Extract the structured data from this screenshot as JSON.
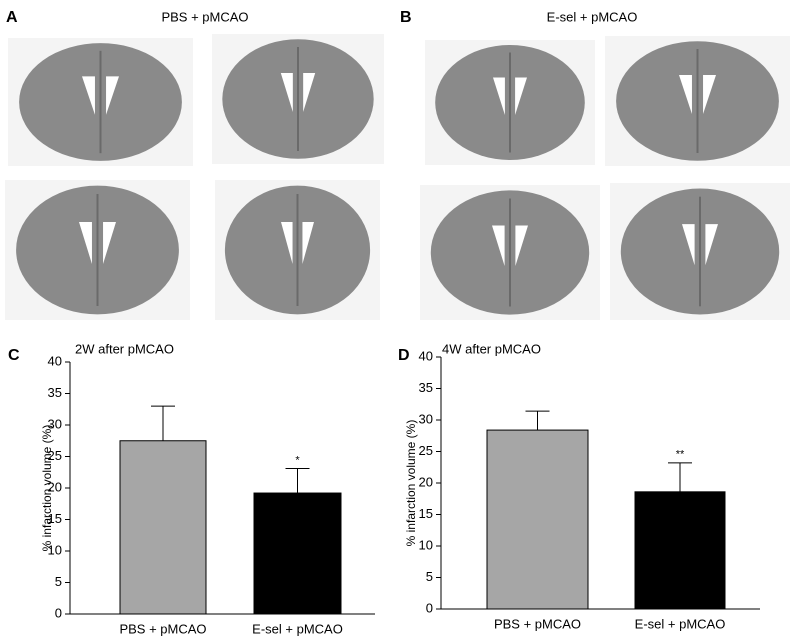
{
  "panels": [
    {
      "letter": "A",
      "title": "PBS + pMCAO"
    },
    {
      "letter": "B",
      "title": "E-sel + pMCAO"
    }
  ],
  "chart_data": [
    {
      "type": "bar",
      "letter": "C",
      "title": "2W after pMCAO",
      "y_label": "% infarction volume (%)",
      "categories": [
        "PBS + pMCAO",
        "E-sel + pMCAO"
      ],
      "values": [
        27.5,
        19.2
      ],
      "errors": [
        5.5,
        3.9
      ],
      "colors": [
        "#a6a6a6",
        "#000000"
      ],
      "significance": [
        null,
        "*"
      ],
      "ylim": [
        0,
        40
      ],
      "yticks": [
        0,
        5,
        10,
        15,
        20,
        25,
        30,
        35,
        40
      ]
    },
    {
      "type": "bar",
      "letter": "D",
      "title": "4W after pMCAO",
      "y_label": "% infarction volume (%)",
      "categories": [
        "PBS + pMCAO",
        "E-sel + pMCAO"
      ],
      "values": [
        28.4,
        18.6
      ],
      "errors": [
        3.0,
        4.6
      ],
      "colors": [
        "#a6a6a6",
        "#000000"
      ],
      "significance": [
        null,
        "**"
      ],
      "ylim": [
        0,
        40
      ],
      "yticks": [
        0,
        5,
        10,
        15,
        20,
        25,
        30,
        35,
        40
      ]
    }
  ]
}
